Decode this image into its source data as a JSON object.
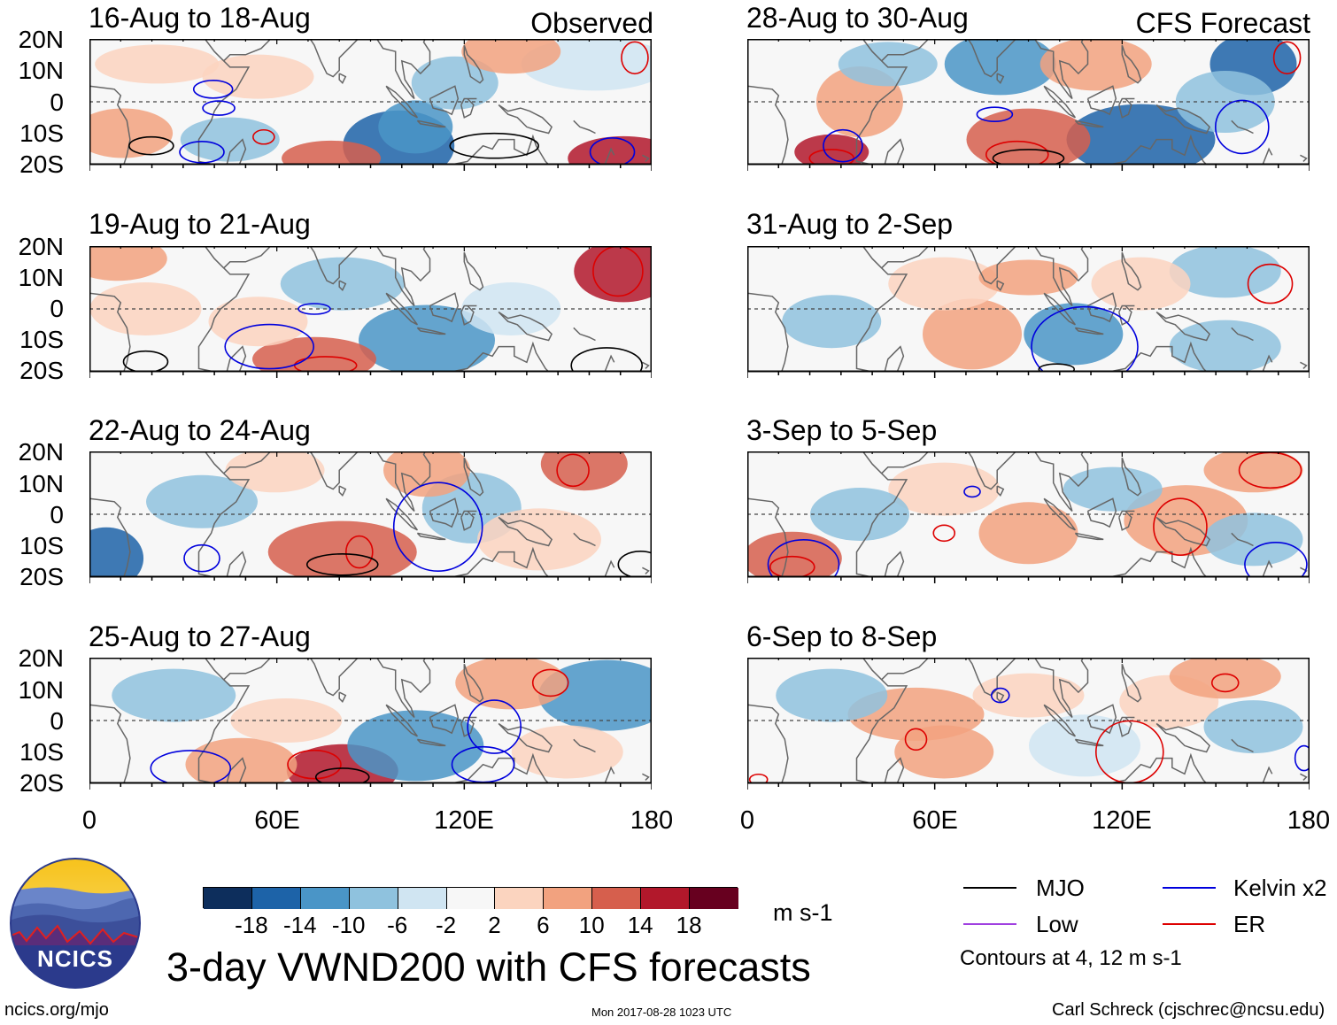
{
  "left_header": "Observed",
  "right_header": "CFS Forecast",
  "panels_left": [
    {
      "title": "16-Aug to 18-Aug"
    },
    {
      "title": "19-Aug to 21-Aug"
    },
    {
      "title": "22-Aug to 24-Aug"
    },
    {
      "title": "25-Aug to 27-Aug"
    }
  ],
  "panels_right": [
    {
      "title": "28-Aug to 30-Aug"
    },
    {
      "title": "31-Aug to 2-Sep"
    },
    {
      "title": "3-Sep to 5-Sep"
    },
    {
      "title": "6-Sep to 8-Sep"
    }
  ],
  "y_labels": [
    "20N",
    "10N",
    "0",
    "10S",
    "20S"
  ],
  "x_labels": [
    "0",
    "60E",
    "120E",
    "180"
  ],
  "colorbar": {
    "colors": [
      "#0d2e5c",
      "#1d63a8",
      "#4a95c7",
      "#8fc2de",
      "#d0e5f2",
      "#f7f7f7",
      "#fbd4bf",
      "#f2a27f",
      "#d65f4d",
      "#b2182b",
      "#67001f"
    ],
    "labels": [
      "-18",
      "-14",
      "-10",
      "-6",
      "-2",
      "2",
      "6",
      "10",
      "14",
      "18"
    ],
    "units": "m s-1"
  },
  "main_title": "3-day VWND200 with CFS forecasts",
  "legend": {
    "items": [
      {
        "label": "MJO",
        "color": "#000000"
      },
      {
        "label": "Kelvin x2",
        "color": "#0000dd"
      },
      {
        "label": "Low",
        "color": "#a040e0"
      },
      {
        "label": "ER",
        "color": "#dd0000"
      }
    ],
    "note": "Contours at 4, 12 m s-1"
  },
  "logo_text": "NCICS",
  "footer_left": "ncics.org/mjo",
  "footer_center": "Mon 2017-08-28 1023 UTC",
  "footer_right": "Carl Schreck (cjschrec@ncsu.edu)"
}
